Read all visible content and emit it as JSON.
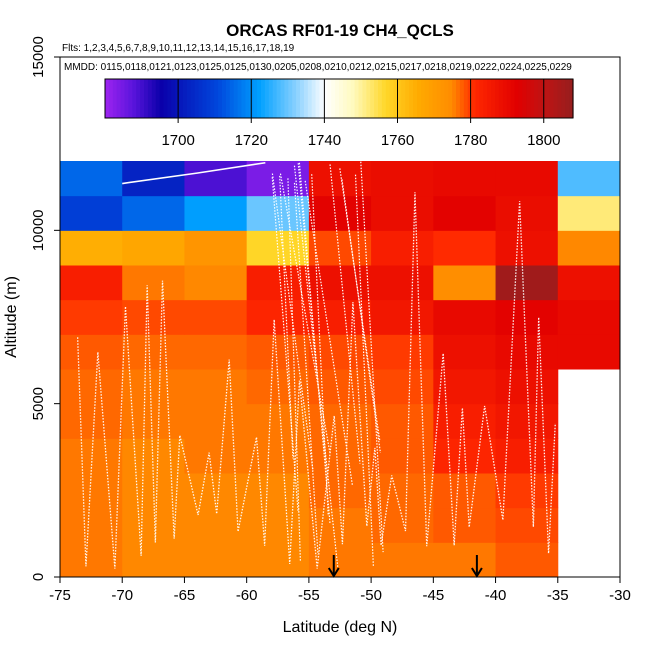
{
  "chart_data": {
    "type": "heatmap",
    "title": "ORCAS RF01-19 CH4_QCLS",
    "flights_label": "Flts: 1,2,3,4,5,6,7,8,9,10,11,12,13,14,15,16,17,18,19",
    "dates_label": "MMDD: 0115,0118,0121,0123,0125,0125,0130,0205,0208,0210,0212,0215,0217,0218,0219,0222,0224,0225,0229",
    "xlabel": "Latitude (deg N)",
    "ylabel": "Altitude (m)",
    "xlim": [
      -75,
      -30
    ],
    "ylim": [
      0,
      15000
    ],
    "x_ticks": [
      -75,
      -70,
      -65,
      -60,
      -55,
      -50,
      -45,
      -40,
      -35,
      -30
    ],
    "y_ticks": [
      0,
      5000,
      10000,
      15000
    ],
    "colorbar": {
      "min": 1680,
      "max": 1808,
      "ticks": [
        1700,
        1720,
        1740,
        1760,
        1780,
        1800
      ]
    },
    "grid": {
      "lat_edges": [
        -75,
        -70,
        -65,
        -60,
        -55,
        -50,
        -45,
        -40,
        -35
      ],
      "alt_edges": [
        0,
        1000,
        2000,
        3000,
        4000,
        5000,
        6000,
        7000,
        8000,
        9000,
        10000,
        11000,
        12000
      ],
      "values": [
        [
          1776,
          1775,
          1775,
          1775,
          1776,
          1776,
          1776,
          1778
        ],
        [
          1776,
          1775,
          1775,
          1775,
          1776,
          1777,
          1778,
          1779
        ],
        [
          1776,
          1775,
          1775,
          1775,
          1777,
          1777,
          1778,
          1780
        ],
        [
          1776,
          1775,
          1776,
          1776,
          1777,
          1778,
          1782,
          1784
        ],
        [
          1777,
          1776,
          1776,
          1776,
          1777,
          1778,
          1784,
          1786
        ],
        [
          1777,
          1776,
          1776,
          1777,
          1778,
          1779,
          1786,
          1788
        ],
        [
          1778,
          1777,
          1777,
          1778,
          1779,
          1780,
          1788,
          1790
        ],
        [
          1780,
          1779,
          1779,
          1782,
          1784,
          1786,
          1790,
          1792
        ],
        [
          1784,
          1776,
          1775,
          1784,
          1788,
          1788,
          1774,
          1806
        ],
        [
          1765,
          1767,
          1772,
          1757,
          1779,
          1784,
          1781,
          1788
        ],
        [
          1709,
          1715,
          1722,
          1730,
          1792,
          1789,
          1792,
          1789
        ],
        [
          1715,
          1703,
          1689,
          1684,
          1788,
          1789,
          1790,
          1790
        ]
      ],
      "extra_column": {
        "lat": [
          -35,
          -30
        ],
        "cells": [
          {
            "alt": [
              6000,
              7000
            ],
            "value": 1790
          },
          {
            "alt": [
              7000,
              8000
            ],
            "value": 1790
          },
          {
            "alt": [
              8000,
              9000
            ],
            "value": 1788
          },
          {
            "alt": [
              9000,
              10000
            ],
            "value": 1775
          },
          {
            "alt": [
              10000,
              11000
            ],
            "value": 1752
          },
          {
            "alt": [
              11000,
              12000
            ],
            "value": 1728
          }
        ]
      }
    },
    "arrows_lat": [
      -53,
      -41.5
    ]
  }
}
